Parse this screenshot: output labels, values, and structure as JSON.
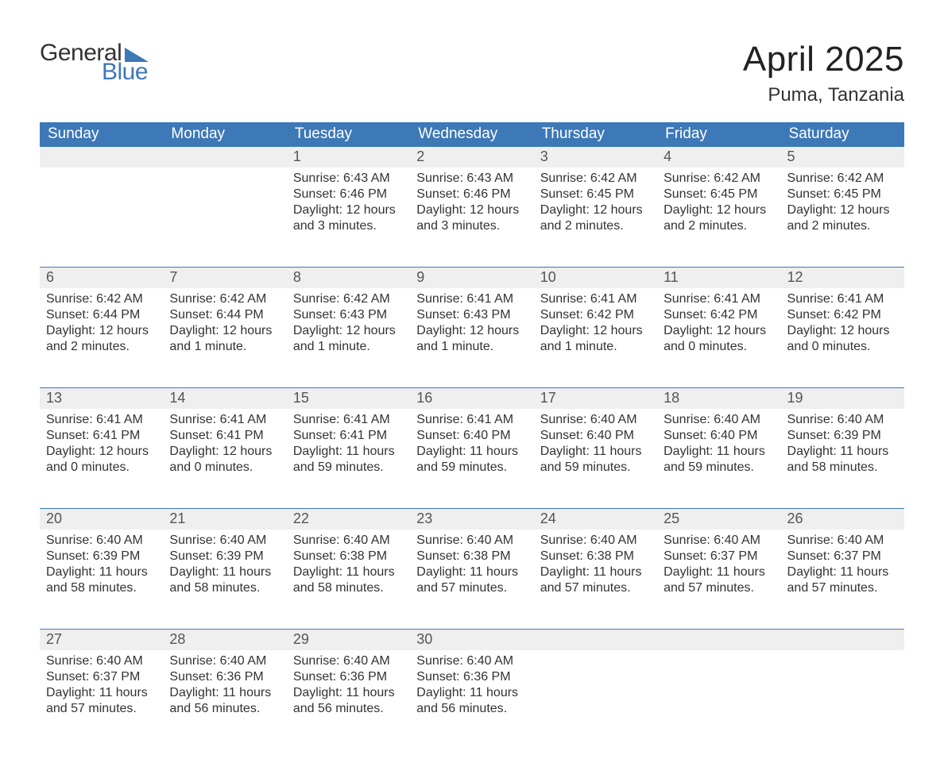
{
  "logo": {
    "word1": "General",
    "word2": "Blue",
    "text_color": "#333333",
    "accent_color": "#3d78b7"
  },
  "title": "April 2025",
  "location": "Puma, Tanzania",
  "header_bg": "#3d78b7",
  "header_fg": "#ffffff",
  "daynum_bg": "#efefef",
  "border_color": "#3d78b7",
  "columns": [
    "Sunday",
    "Monday",
    "Tuesday",
    "Wednesday",
    "Thursday",
    "Friday",
    "Saturday"
  ],
  "weeks": [
    [
      null,
      null,
      {
        "n": "1",
        "sunrise": "6:43 AM",
        "sunset": "6:46 PM",
        "daylight": "12 hours and 3 minutes."
      },
      {
        "n": "2",
        "sunrise": "6:43 AM",
        "sunset": "6:46 PM",
        "daylight": "12 hours and 3 minutes."
      },
      {
        "n": "3",
        "sunrise": "6:42 AM",
        "sunset": "6:45 PM",
        "daylight": "12 hours and 2 minutes."
      },
      {
        "n": "4",
        "sunrise": "6:42 AM",
        "sunset": "6:45 PM",
        "daylight": "12 hours and 2 minutes."
      },
      {
        "n": "5",
        "sunrise": "6:42 AM",
        "sunset": "6:45 PM",
        "daylight": "12 hours and 2 minutes."
      }
    ],
    [
      {
        "n": "6",
        "sunrise": "6:42 AM",
        "sunset": "6:44 PM",
        "daylight": "12 hours and 2 minutes."
      },
      {
        "n": "7",
        "sunrise": "6:42 AM",
        "sunset": "6:44 PM",
        "daylight": "12 hours and 1 minute."
      },
      {
        "n": "8",
        "sunrise": "6:42 AM",
        "sunset": "6:43 PM",
        "daylight": "12 hours and 1 minute."
      },
      {
        "n": "9",
        "sunrise": "6:41 AM",
        "sunset": "6:43 PM",
        "daylight": "12 hours and 1 minute."
      },
      {
        "n": "10",
        "sunrise": "6:41 AM",
        "sunset": "6:42 PM",
        "daylight": "12 hours and 1 minute."
      },
      {
        "n": "11",
        "sunrise": "6:41 AM",
        "sunset": "6:42 PM",
        "daylight": "12 hours and 0 minutes."
      },
      {
        "n": "12",
        "sunrise": "6:41 AM",
        "sunset": "6:42 PM",
        "daylight": "12 hours and 0 minutes."
      }
    ],
    [
      {
        "n": "13",
        "sunrise": "6:41 AM",
        "sunset": "6:41 PM",
        "daylight": "12 hours and 0 minutes."
      },
      {
        "n": "14",
        "sunrise": "6:41 AM",
        "sunset": "6:41 PM",
        "daylight": "12 hours and 0 minutes."
      },
      {
        "n": "15",
        "sunrise": "6:41 AM",
        "sunset": "6:41 PM",
        "daylight": "11 hours and 59 minutes."
      },
      {
        "n": "16",
        "sunrise": "6:41 AM",
        "sunset": "6:40 PM",
        "daylight": "11 hours and 59 minutes."
      },
      {
        "n": "17",
        "sunrise": "6:40 AM",
        "sunset": "6:40 PM",
        "daylight": "11 hours and 59 minutes."
      },
      {
        "n": "18",
        "sunrise": "6:40 AM",
        "sunset": "6:40 PM",
        "daylight": "11 hours and 59 minutes."
      },
      {
        "n": "19",
        "sunrise": "6:40 AM",
        "sunset": "6:39 PM",
        "daylight": "11 hours and 58 minutes."
      }
    ],
    [
      {
        "n": "20",
        "sunrise": "6:40 AM",
        "sunset": "6:39 PM",
        "daylight": "11 hours and 58 minutes."
      },
      {
        "n": "21",
        "sunrise": "6:40 AM",
        "sunset": "6:39 PM",
        "daylight": "11 hours and 58 minutes."
      },
      {
        "n": "22",
        "sunrise": "6:40 AM",
        "sunset": "6:38 PM",
        "daylight": "11 hours and 58 minutes."
      },
      {
        "n": "23",
        "sunrise": "6:40 AM",
        "sunset": "6:38 PM",
        "daylight": "11 hours and 57 minutes."
      },
      {
        "n": "24",
        "sunrise": "6:40 AM",
        "sunset": "6:38 PM",
        "daylight": "11 hours and 57 minutes."
      },
      {
        "n": "25",
        "sunrise": "6:40 AM",
        "sunset": "6:37 PM",
        "daylight": "11 hours and 57 minutes."
      },
      {
        "n": "26",
        "sunrise": "6:40 AM",
        "sunset": "6:37 PM",
        "daylight": "11 hours and 57 minutes."
      }
    ],
    [
      {
        "n": "27",
        "sunrise": "6:40 AM",
        "sunset": "6:37 PM",
        "daylight": "11 hours and 57 minutes."
      },
      {
        "n": "28",
        "sunrise": "6:40 AM",
        "sunset": "6:36 PM",
        "daylight": "11 hours and 56 minutes."
      },
      {
        "n": "29",
        "sunrise": "6:40 AM",
        "sunset": "6:36 PM",
        "daylight": "11 hours and 56 minutes."
      },
      {
        "n": "30",
        "sunrise": "6:40 AM",
        "sunset": "6:36 PM",
        "daylight": "11 hours and 56 minutes."
      },
      null,
      null,
      null
    ]
  ],
  "labels": {
    "sunrise": "Sunrise:",
    "sunset": "Sunset:",
    "daylight": "Daylight:"
  }
}
